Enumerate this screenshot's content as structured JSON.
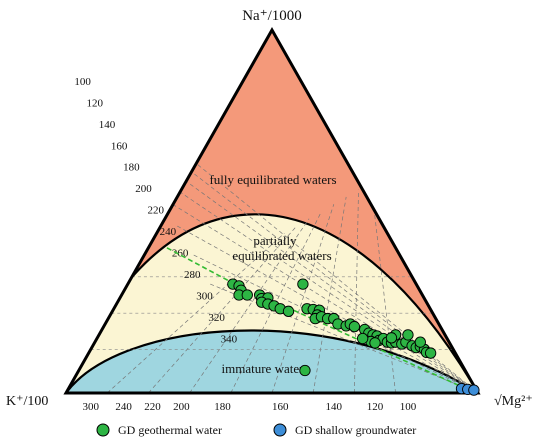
{
  "chart_data": {
    "type": "ternary",
    "title": "",
    "vertices": {
      "top": "Na⁺/1000",
      "left": "K⁺/100",
      "right": "√Mg²⁺"
    },
    "left_edge_ticks": [
      "100",
      "120",
      "140",
      "160",
      "180",
      "200",
      "220",
      "240",
      "260",
      "280",
      "300",
      "320",
      "340"
    ],
    "bottom_edge_ticks": [
      "300",
      "240",
      "220",
      "200",
      "180",
      "160",
      "140",
      "120",
      "100"
    ],
    "zones": [
      "fully equilibrated waters",
      "partially equilibrated waters",
      "immature waters"
    ],
    "zone_text": {
      "fully": "fully equilibrated waters",
      "partial_line1": "partially",
      "partial_line2": "equilibrated waters",
      "immature": "immature waters"
    },
    "colors": {
      "fully": "#f4997a",
      "partial": "#fbf5d3",
      "immature": "#9fd6e0",
      "geothermal": "#2db544",
      "shallow": "#3d8ed8",
      "trend": "#33bb33"
    },
    "series": [
      {
        "name": "GD geothermal water",
        "marker": "circle",
        "color": "#2db544",
        "points": [
          [
            0.405,
            0.3
          ],
          [
            0.42,
            0.295
          ],
          [
            0.425,
            0.283
          ],
          [
            0.42,
            0.27
          ],
          [
            0.44,
            0.27
          ],
          [
            0.47,
            0.27
          ],
          [
            0.475,
            0.26
          ],
          [
            0.49,
            0.262
          ],
          [
            0.475,
            0.25
          ],
          [
            0.49,
            0.245
          ],
          [
            0.505,
            0.24
          ],
          [
            0.52,
            0.232
          ],
          [
            0.54,
            0.225
          ],
          [
            0.575,
            0.3
          ],
          [
            0.585,
            0.232
          ],
          [
            0.6,
            0.23
          ],
          [
            0.615,
            0.228
          ],
          [
            0.61,
            0.215
          ],
          [
            0.605,
            0.205
          ],
          [
            0.62,
            0.21
          ],
          [
            0.635,
            0.205
          ],
          [
            0.65,
            0.205
          ],
          [
            0.66,
            0.19
          ],
          [
            0.68,
            0.185
          ],
          [
            0.69,
            0.19
          ],
          [
            0.7,
            0.183
          ],
          [
            0.725,
            0.175
          ],
          [
            0.735,
            0.165
          ],
          [
            0.745,
            0.16
          ],
          [
            0.755,
            0.157
          ],
          [
            0.76,
            0.145
          ],
          [
            0.77,
            0.15
          ],
          [
            0.78,
            0.14
          ],
          [
            0.79,
            0.138
          ],
          [
            0.8,
            0.14
          ],
          [
            0.815,
            0.135
          ],
          [
            0.825,
            0.14
          ],
          [
            0.84,
            0.13
          ],
          [
            0.85,
            0.125
          ],
          [
            0.86,
            0.128
          ],
          [
            0.87,
            0.12
          ],
          [
            0.875,
            0.112
          ],
          [
            0.885,
            0.11
          ],
          [
            0.86,
            0.14
          ],
          [
            0.83,
            0.16
          ],
          [
            0.8,
            0.16
          ],
          [
            0.79,
            0.152
          ],
          [
            0.74,
            0.142
          ],
          [
            0.72,
            0.15
          ],
          [
            0.75,
            0.138
          ],
          [
            0.58,
            0.062
          ]
        ]
      },
      {
        "name": "GD shallow groundwater",
        "marker": "circle",
        "color": "#3d8ed8",
        "points": [
          [
            0.96,
            0.012
          ],
          [
            0.975,
            0.01
          ],
          [
            0.99,
            0.008
          ]
        ]
      }
    ],
    "legend": {
      "position": "bottom",
      "entries": [
        "GD geothermal water",
        "GD shallow groundwater"
      ]
    }
  }
}
